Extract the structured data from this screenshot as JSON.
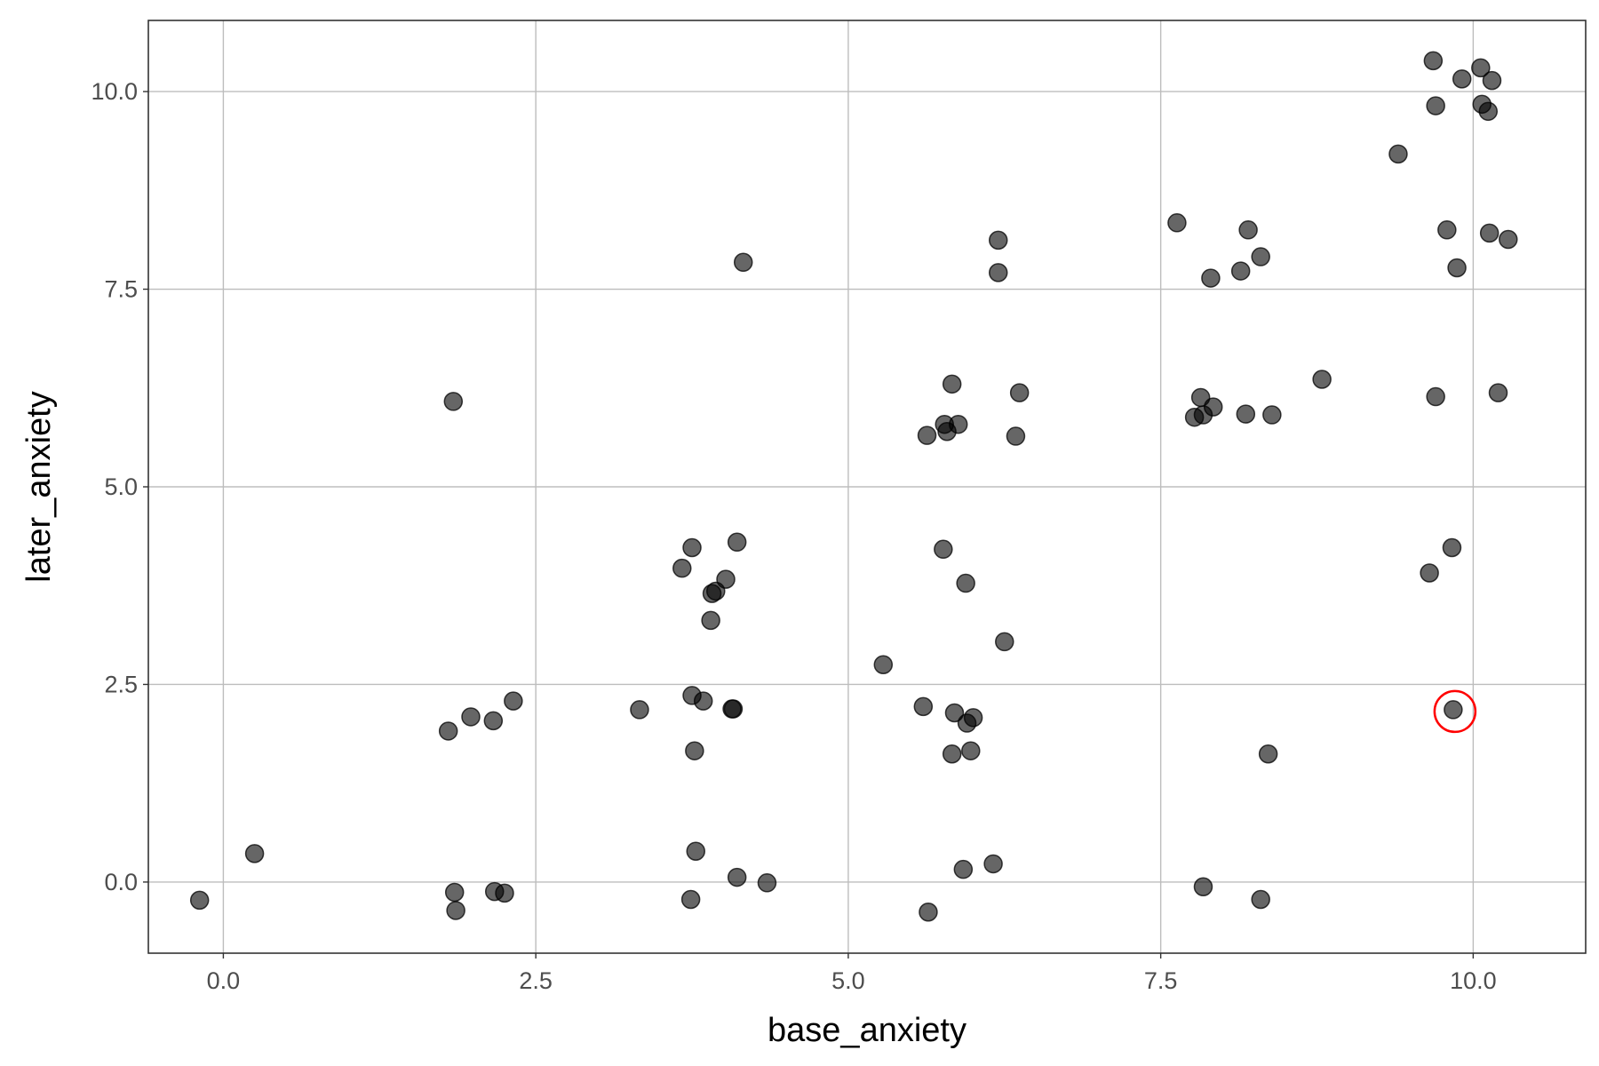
{
  "chart_data": {
    "type": "scatter",
    "title": "",
    "xlabel": "base_anxiety",
    "ylabel": "later_anxiety",
    "xlim": [
      -0.6,
      10.9
    ],
    "ylim": [
      -0.9,
      10.9
    ],
    "xticks": [
      0.0,
      2.5,
      5.0,
      7.5,
      10.0
    ],
    "yticks": [
      0.0,
      2.5,
      5.0,
      7.5,
      10.0
    ],
    "xtick_labels": [
      "0.0",
      "2.5",
      "5.0",
      "7.5",
      "10.0"
    ],
    "ytick_labels": [
      "0.0",
      "2.5",
      "5.0",
      "7.5",
      "10.0"
    ],
    "grid": true,
    "point_color": "#000000",
    "point_alpha": 0.6,
    "highlight_color": "#ff0000",
    "highlight_point": {
      "x": 9.84,
      "y": 2.18
    },
    "points": [
      [
        -0.19,
        -0.23
      ],
      [
        0.25,
        0.36
      ],
      [
        1.84,
        6.08
      ],
      [
        1.8,
        1.91
      ],
      [
        1.98,
        2.09
      ],
      [
        2.16,
        2.04
      ],
      [
        2.32,
        2.29
      ],
      [
        1.85,
        -0.13
      ],
      [
        1.86,
        -0.36
      ],
      [
        2.17,
        -0.12
      ],
      [
        2.25,
        -0.14
      ],
      [
        3.33,
        2.18
      ],
      [
        4.16,
        7.84
      ],
      [
        3.75,
        4.23
      ],
      [
        3.67,
        3.97
      ],
      [
        4.11,
        4.3
      ],
      [
        4.02,
        3.83
      ],
      [
        3.91,
        3.65
      ],
      [
        3.94,
        3.68
      ],
      [
        3.9,
        3.31
      ],
      [
        3.75,
        2.36
      ],
      [
        3.84,
        2.29
      ],
      [
        4.07,
        2.19
      ],
      [
        4.08,
        2.19
      ],
      [
        3.77,
        1.66
      ],
      [
        3.78,
        0.39
      ],
      [
        3.74,
        -0.22
      ],
      [
        4.11,
        0.06
      ],
      [
        4.35,
        -0.01
      ],
      [
        5.28,
        2.75
      ],
      [
        6.2,
        8.12
      ],
      [
        6.2,
        7.71
      ],
      [
        5.83,
        6.3
      ],
      [
        6.37,
        6.19
      ],
      [
        5.77,
        5.79
      ],
      [
        5.88,
        5.79
      ],
      [
        5.79,
        5.7
      ],
      [
        5.63,
        5.65
      ],
      [
        6.34,
        5.64
      ],
      [
        5.76,
        4.21
      ],
      [
        5.94,
        3.78
      ],
      [
        6.25,
        3.04
      ],
      [
        5.6,
        2.22
      ],
      [
        5.85,
        2.14
      ],
      [
        6.0,
        2.08
      ],
      [
        5.95,
        2.01
      ],
      [
        5.83,
        1.62
      ],
      [
        5.98,
        1.66
      ],
      [
        5.92,
        0.16
      ],
      [
        6.16,
        0.23
      ],
      [
        5.64,
        -0.38
      ],
      [
        7.63,
        8.34
      ],
      [
        8.2,
        8.25
      ],
      [
        8.3,
        7.91
      ],
      [
        7.9,
        7.64
      ],
      [
        8.14,
        7.73
      ],
      [
        7.82,
        6.13
      ],
      [
        7.92,
        6.01
      ],
      [
        7.77,
        5.88
      ],
      [
        7.84,
        5.91
      ],
      [
        8.18,
        5.92
      ],
      [
        8.39,
        5.91
      ],
      [
        8.79,
        6.36
      ],
      [
        8.36,
        1.62
      ],
      [
        7.84,
        -0.06
      ],
      [
        8.3,
        -0.22
      ],
      [
        9.68,
        10.39
      ],
      [
        10.06,
        10.3
      ],
      [
        9.91,
        10.16
      ],
      [
        10.15,
        10.14
      ],
      [
        9.7,
        9.82
      ],
      [
        10.07,
        9.84
      ],
      [
        10.12,
        9.75
      ],
      [
        9.4,
        9.21
      ],
      [
        9.79,
        8.25
      ],
      [
        10.13,
        8.21
      ],
      [
        10.28,
        8.13
      ],
      [
        9.87,
        7.77
      ],
      [
        9.7,
        6.14
      ],
      [
        10.2,
        6.19
      ],
      [
        9.83,
        4.23
      ],
      [
        9.65,
        3.91
      ],
      [
        9.84,
        2.18
      ]
    ]
  }
}
